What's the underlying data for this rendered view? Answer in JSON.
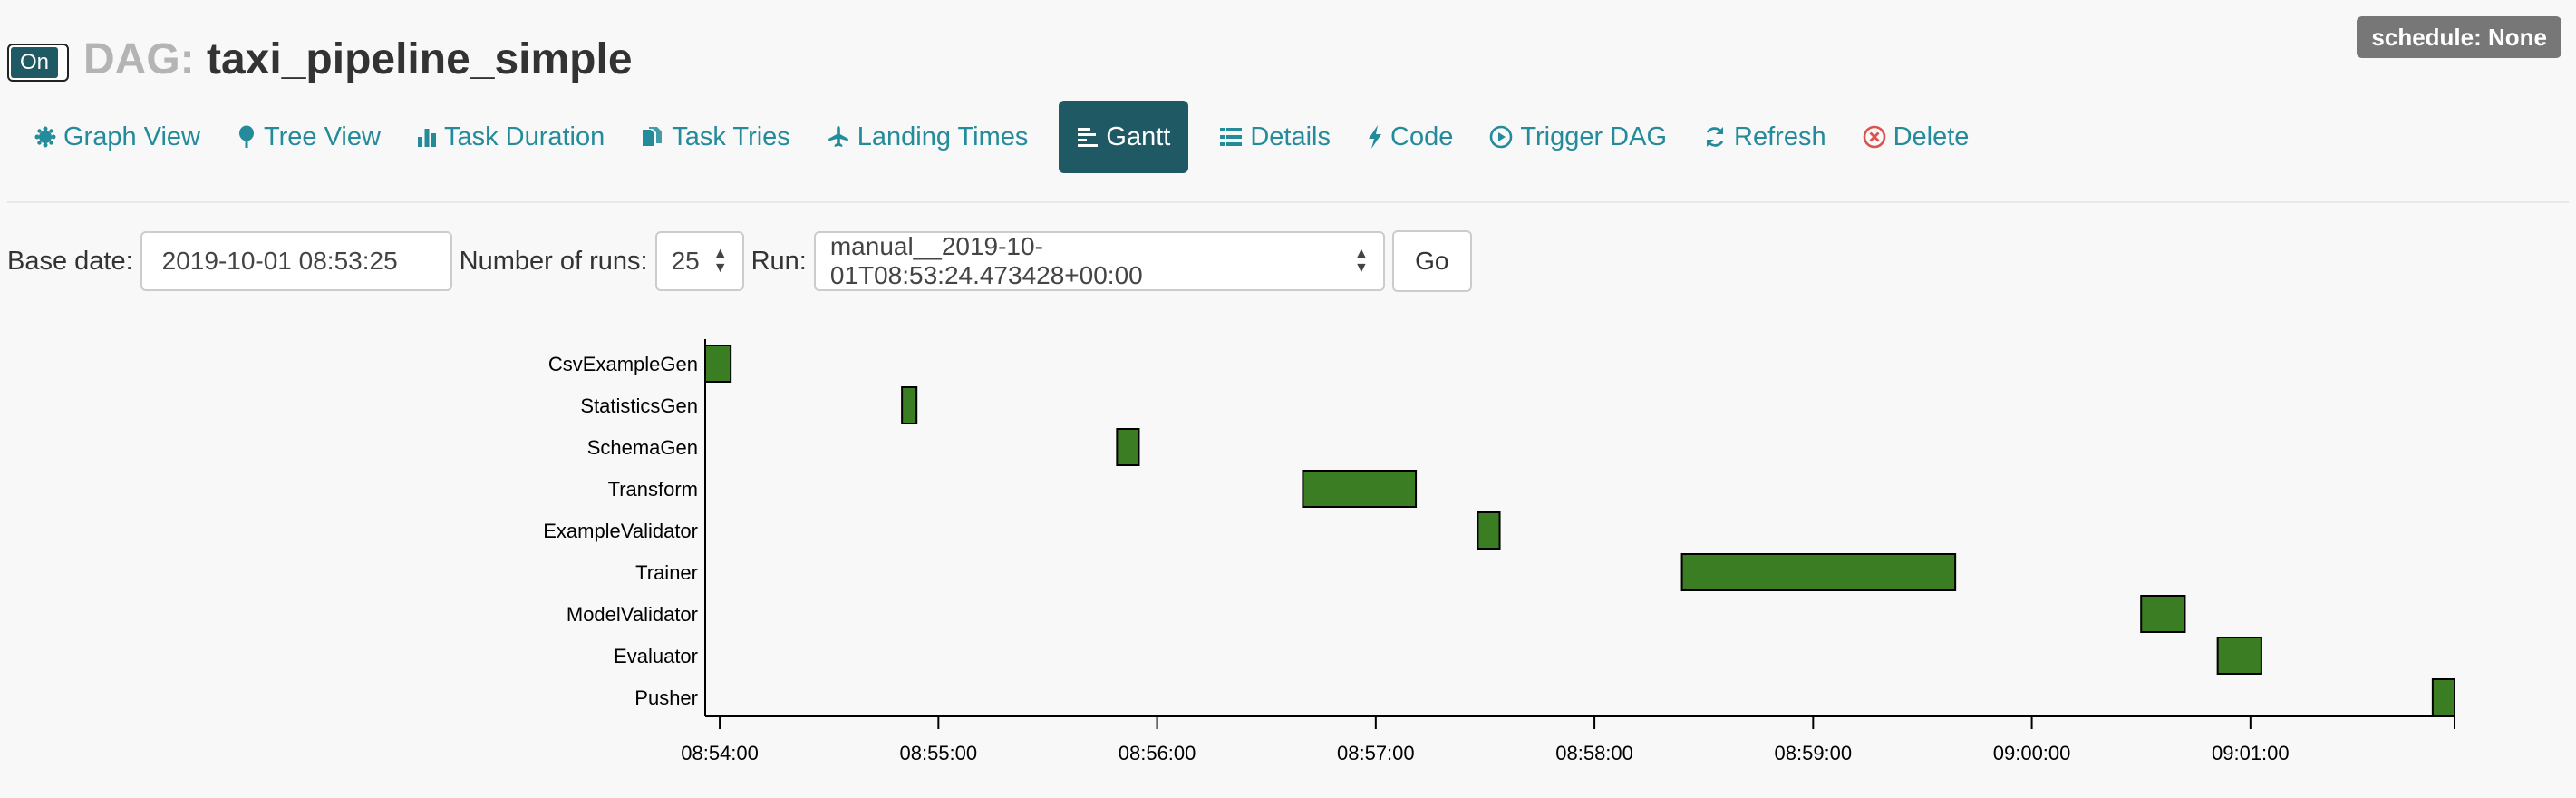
{
  "header": {
    "toggle_label": "On",
    "dag_label": "DAG:",
    "dag_name": "taxi_pipeline_simple",
    "schedule_badge": "schedule: None"
  },
  "nav": {
    "tabs": [
      {
        "label": "Graph View",
        "icon": "graph-icon"
      },
      {
        "label": "Tree View",
        "icon": "tree-icon"
      },
      {
        "label": "Task Duration",
        "icon": "bar-chart-icon"
      },
      {
        "label": "Task Tries",
        "icon": "files-icon"
      },
      {
        "label": "Landing Times",
        "icon": "plane-icon"
      },
      {
        "label": "Gantt",
        "icon": "gantt-icon",
        "active": true
      },
      {
        "label": "Details",
        "icon": "list-icon"
      },
      {
        "label": "Code",
        "icon": "bolt-icon"
      },
      {
        "label": "Trigger DAG",
        "icon": "play-circle-icon"
      },
      {
        "label": "Refresh",
        "icon": "refresh-icon"
      },
      {
        "label": "Delete",
        "icon": "delete-circle-icon",
        "icon_color": "#d9534f"
      }
    ]
  },
  "controls": {
    "base_date_label": "Base date:",
    "base_date_value": "2019-10-01 08:53:25",
    "num_runs_label": "Number of runs:",
    "num_runs_value": "25",
    "run_label": "Run:",
    "run_value": "manual__2019-10-01T08:53:24.473428+00:00",
    "go_label": "Go"
  },
  "colors": {
    "accent": "#238b9a",
    "active_tab": "#1f5963",
    "bar_fill": "#3a7d22",
    "delete": "#d9534f"
  },
  "chart_data": {
    "type": "gantt",
    "time_domain": [
      "08:53:56",
      "09:01:56"
    ],
    "ticks": [
      "08:54:00",
      "08:55:00",
      "08:56:00",
      "08:57:00",
      "08:58:00",
      "08:59:00",
      "09:00:00",
      "09:01:00"
    ],
    "tasks": [
      {
        "name": "CsvExampleGen",
        "start": "08:53:56",
        "end": "08:54:03"
      },
      {
        "name": "StatisticsGen",
        "start": "08:54:50",
        "end": "08:54:54"
      },
      {
        "name": "SchemaGen",
        "start": "08:55:49",
        "end": "08:55:55"
      },
      {
        "name": "Transform",
        "start": "08:56:40",
        "end": "08:57:11"
      },
      {
        "name": "ExampleValidator",
        "start": "08:57:28",
        "end": "08:57:34"
      },
      {
        "name": "Trainer",
        "start": "08:58:24",
        "end": "08:59:39"
      },
      {
        "name": "ModelValidator",
        "start": "09:00:30",
        "end": "09:00:42"
      },
      {
        "name": "Evaluator",
        "start": "09:00:51",
        "end": "09:01:03"
      },
      {
        "name": "Pusher",
        "start": "09:01:50",
        "end": "09:01:56"
      }
    ]
  }
}
